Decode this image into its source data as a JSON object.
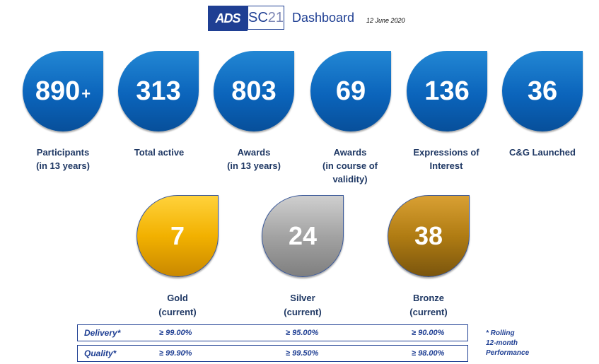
{
  "header": {
    "logo_ads": "ADS",
    "logo_sc": "SC",
    "logo_sc_num": "21",
    "title": "Dashboard",
    "date": "12 June 2020"
  },
  "kpis": [
    {
      "value": "890",
      "suffix": "+",
      "label_lines": [
        "Participants",
        "(in 13 years)"
      ]
    },
    {
      "value": "313",
      "suffix": "",
      "label_lines": [
        "Total active"
      ]
    },
    {
      "value": "803",
      "suffix": "",
      "label_lines": [
        "Awards",
        "(in 13 years)"
      ]
    },
    {
      "value": "69",
      "suffix": "",
      "label_lines": [
        "Awards",
        "(in course of",
        "validity)"
      ]
    },
    {
      "value": "136",
      "suffix": "",
      "label_lines": [
        "Expressions of",
        "Interest"
      ]
    },
    {
      "value": "36",
      "suffix": "",
      "label_lines": [
        "C&G Launched"
      ]
    }
  ],
  "medals": [
    {
      "value": "7",
      "label_lines": [
        "Gold",
        "(current)"
      ],
      "color": "#f2b100"
    },
    {
      "value": "24",
      "label_lines": [
        "Silver",
        "(current)"
      ],
      "color": "#a3a3a3"
    },
    {
      "value": "38",
      "label_lines": [
        "Bronze",
        "(current)"
      ],
      "color": "#b07c13"
    }
  ],
  "performance": [
    {
      "label": "Delivery*",
      "gold": "≥ 99.00%",
      "silver": "≥ 95.00%",
      "bronze": "≥ 90.00%"
    },
    {
      "label": "Quality*",
      "gold": "≥ 99.90%",
      "silver": "≥ 99.50%",
      "bronze": "≥ 98.00%"
    }
  ],
  "note_lines": [
    "* Rolling",
    "12-month",
    "Performance"
  ],
  "colors": {
    "accent": "#1f3f93",
    "label": "#1f3864",
    "drop_blue": "#0b64bb"
  }
}
